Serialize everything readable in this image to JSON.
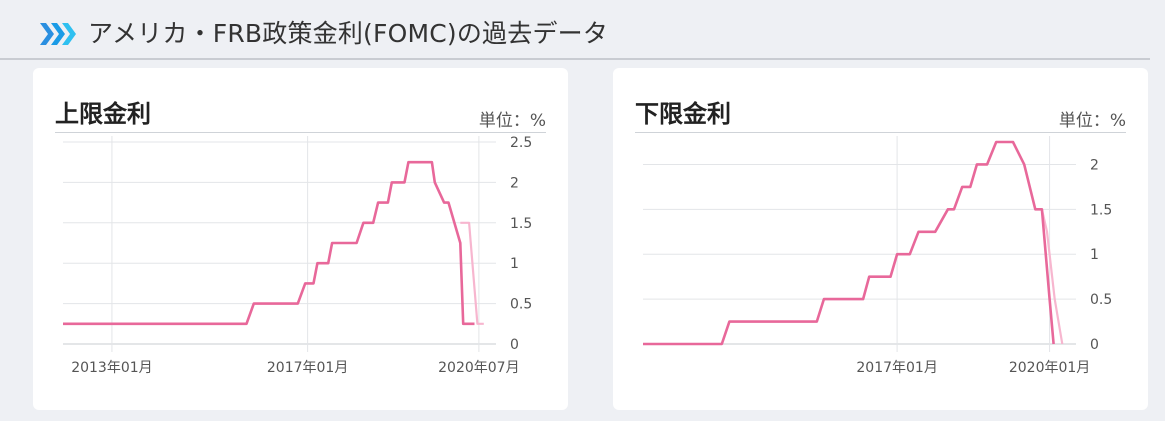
{
  "page": {
    "title": "アメリカ・FRB政策金利(FOMC)の過去データ",
    "icon": "triple-chevron-right-icon",
    "accent": "#1a9be6"
  },
  "colors": {
    "line": "#e8689a",
    "forecast": "#f7b6cf",
    "grid": "#e3e5e8"
  },
  "chart_data": [
    {
      "type": "line",
      "title": "上限金利",
      "unit_label": "単位：%",
      "y_ticks": [
        "0",
        "0.5",
        "1",
        "1.5",
        "2",
        "2.5"
      ],
      "ylim": [
        0,
        2.5
      ],
      "x_ticks": [
        "2013年01月",
        "2017年01月",
        "2020年07月"
      ],
      "x_tick_dates": [
        2013.0,
        2017.0,
        2020.5
      ],
      "xlim": [
        2012.0,
        2020.85
      ],
      "grid": true,
      "series": [
        {
          "x": [
            2012.0,
            2015.75,
            2015.9,
            2016.8,
            2016.95,
            2017.12,
            2017.2,
            2017.42,
            2017.5,
            2018.0,
            2018.14,
            2018.34,
            2018.44,
            2018.64,
            2018.72,
            2018.98,
            2019.06,
            2019.54,
            2019.6,
            2019.79,
            2019.88,
            2020.12,
            2020.18,
            2020.33,
            2020.41
          ],
          "values": [
            0.25,
            0.25,
            0.5,
            0.5,
            0.75,
            0.75,
            1.0,
            1.0,
            1.25,
            1.25,
            1.5,
            1.5,
            1.75,
            1.75,
            2.0,
            2.0,
            2.25,
            2.25,
            2.0,
            1.75,
            1.75,
            1.25,
            0.25,
            0.25,
            0.25
          ]
        },
        {
          "x": [
            2020.12,
            2020.3,
            2020.47,
            2020.6
          ],
          "values": [
            1.5,
            1.5,
            0.25,
            0.25
          ]
        }
      ]
    },
    {
      "type": "line",
      "title": "下限金利",
      "unit_label": "単位：%",
      "y_ticks": [
        "0",
        "0.5",
        "1",
        "1.5",
        "2"
      ],
      "ylim": [
        0,
        2.25
      ],
      "x_ticks": [
        "2017年01月",
        "2020年01月"
      ],
      "x_tick_dates": [
        2017.0,
        2020.0
      ],
      "xlim": [
        2012.0,
        2020.52
      ],
      "grid": true,
      "series": [
        {
          "x": [
            2012.0,
            2013.55,
            2013.7,
            2015.42,
            2015.56,
            2016.33,
            2016.45,
            2016.87,
            2017.0,
            2017.25,
            2017.42,
            2017.75,
            2018.0,
            2018.12,
            2018.28,
            2018.44,
            2018.57,
            2018.77,
            2018.95,
            2019.28,
            2019.5,
            2019.72,
            2019.85,
            2020.0,
            2020.08
          ],
          "values": [
            0,
            0,
            0.25,
            0.25,
            0.5,
            0.5,
            0.75,
            0.75,
            1.0,
            1.0,
            1.25,
            1.25,
            1.5,
            1.5,
            1.75,
            1.75,
            2.0,
            2.0,
            2.25,
            2.25,
            2.0,
            1.5,
            1.5,
            0.5,
            0
          ]
        },
        {
          "x": [
            2019.85,
            2019.95,
            2020.1,
            2020.25
          ],
          "values": [
            1.5,
            1.25,
            0.5,
            0
          ]
        }
      ]
    }
  ]
}
